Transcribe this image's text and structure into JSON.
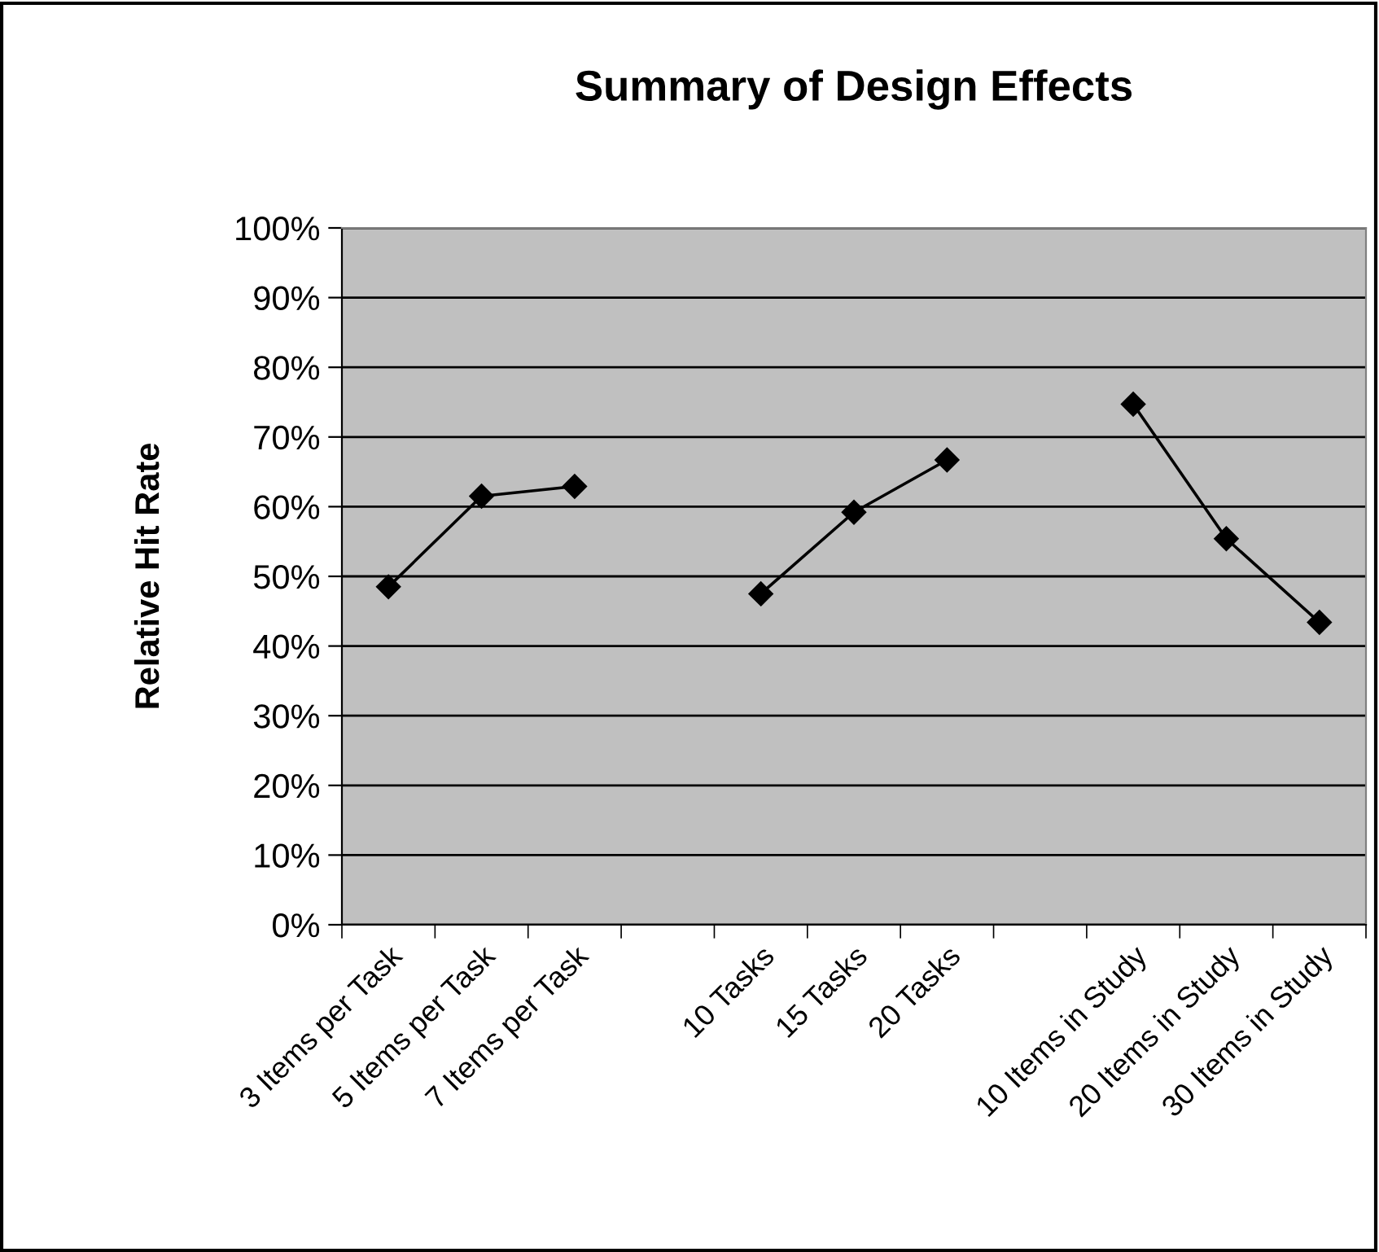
{
  "chart_data": {
    "type": "line",
    "title": "Summary of Design Effects",
    "ylabel": "Relative Hit Rate",
    "categories": [
      "3 Items per Task",
      "5 Items per Task",
      "7 Items per Task",
      null,
      "10 Tasks",
      "15 Tasks",
      "20 Tasks",
      null,
      "10 Items in Study",
      "20 Items in Study",
      "30 Items in Study"
    ],
    "series": [
      {
        "color": "#000000",
        "values": [
          48.5,
          61.5,
          62.9,
          null,
          47.5,
          59.2,
          66.7,
          null,
          74.7,
          55.4,
          43.4
        ]
      }
    ],
    "ylim": [
      0,
      100
    ],
    "yticks": [
      {
        "value": 0,
        "label": "0%"
      },
      {
        "value": 10,
        "label": "10%"
      },
      {
        "value": 20,
        "label": "20%"
      },
      {
        "value": 30,
        "label": "30%"
      },
      {
        "value": 40,
        "label": "40%"
      },
      {
        "value": 50,
        "label": "50%"
      },
      {
        "value": 60,
        "label": "60%"
      },
      {
        "value": 70,
        "label": "70%"
      },
      {
        "value": 80,
        "label": "80%"
      },
      {
        "value": 90,
        "label": "90%"
      },
      {
        "value": 100,
        "label": "100%"
      }
    ],
    "grid": "y",
    "marker": "diamond",
    "line_style": "solid"
  }
}
